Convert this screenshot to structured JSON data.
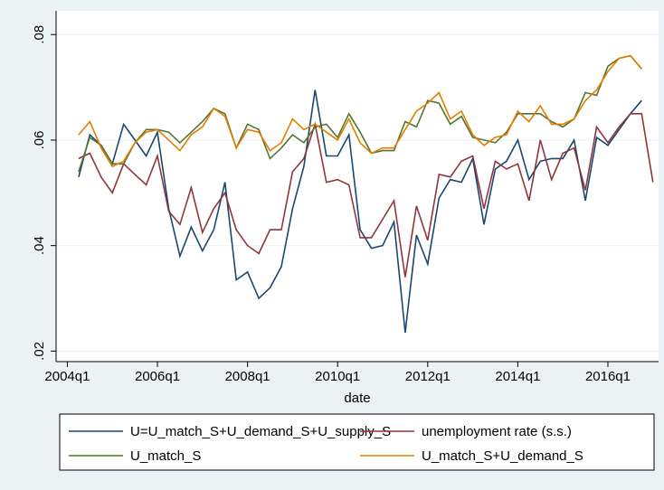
{
  "chart_data": {
    "type": "line",
    "x": [
      177,
      178,
      179,
      180,
      181,
      182,
      183,
      184,
      185,
      186,
      187,
      188,
      189,
      190,
      191,
      192,
      193,
      194,
      195,
      196,
      197,
      198,
      199,
      200,
      201,
      202,
      203,
      204,
      205,
      206,
      207,
      208,
      209,
      210,
      211,
      212,
      213,
      214,
      215,
      216,
      217,
      218,
      219,
      220,
      221,
      222,
      223,
      224,
      225,
      226,
      227,
      228
    ],
    "xlim": [
      175,
      228.5
    ],
    "xticks": [
      {
        "value": 176,
        "label": "2004q1"
      },
      {
        "value": 184,
        "label": "2006q1"
      },
      {
        "value": 192,
        "label": "2008q1"
      },
      {
        "value": 200,
        "label": "2010q1"
      },
      {
        "value": 208,
        "label": "2012q1"
      },
      {
        "value": 216,
        "label": "2014q1"
      },
      {
        "value": 224,
        "label": "2016q1"
      }
    ],
    "ylim": [
      0.018,
      0.0845
    ],
    "yticks": [
      {
        "value": 0.02,
        "label": ".02"
      },
      {
        "value": 0.04,
        "label": ".04"
      },
      {
        "value": 0.06,
        "label": ".06"
      },
      {
        "value": 0.08,
        "label": ".08"
      }
    ],
    "x_label": "date",
    "grid": true,
    "series": [
      {
        "name": "U=U_match_S+U_demand_S+U_supply_S",
        "color": "#1a476f",
        "values": [
          0.053,
          0.061,
          0.059,
          0.0555,
          0.063,
          0.06,
          0.057,
          0.0615,
          0.047,
          0.038,
          0.0435,
          0.039,
          0.043,
          0.052,
          0.0335,
          0.035,
          0.03,
          0.032,
          0.036,
          0.047,
          0.055,
          0.0695,
          0.057,
          0.057,
          0.061,
          0.043,
          0.0395,
          0.04,
          0.0445,
          0.0235,
          0.042,
          0.0365,
          0.049,
          0.0525,
          0.052,
          0.0565,
          0.044,
          0.0545,
          0.056,
          0.06,
          0.0525,
          0.056,
          0.0565,
          0.0565,
          0.06,
          0.0485,
          0.0605,
          0.059,
          0.062,
          0.065,
          0.0675,
          null
        ]
      },
      {
        "name": "unemployment rate (s.s.)",
        "color": "#90353b",
        "values": [
          0.0565,
          0.0575,
          0.053,
          0.05,
          0.0555,
          0.0535,
          0.0515,
          0.057,
          0.0465,
          0.044,
          0.051,
          0.0425,
          0.047,
          0.05,
          0.043,
          0.04,
          0.0385,
          0.043,
          0.043,
          0.054,
          0.0565,
          0.063,
          0.052,
          0.0525,
          0.0515,
          0.0415,
          0.0415,
          0.045,
          0.0485,
          0.034,
          0.0475,
          0.041,
          0.0535,
          0.053,
          0.056,
          0.057,
          0.047,
          0.056,
          0.0545,
          0.0555,
          0.0485,
          0.06,
          0.0525,
          0.0575,
          0.0585,
          0.0505,
          0.0625,
          0.0595,
          0.0625,
          0.065,
          0.065,
          0.052
        ]
      },
      {
        "name": "U_match_S",
        "color": "#55752f",
        "values": [
          0.054,
          0.0605,
          0.059,
          0.0555,
          0.0555,
          0.0595,
          0.062,
          0.062,
          0.0615,
          0.0595,
          0.0615,
          0.0635,
          0.066,
          0.065,
          0.0585,
          0.063,
          0.062,
          0.0565,
          0.0585,
          0.061,
          0.0595,
          0.0625,
          0.063,
          0.0605,
          0.065,
          0.0615,
          0.0575,
          0.058,
          0.058,
          0.0635,
          0.0625,
          0.0675,
          0.067,
          0.063,
          0.0645,
          0.0605,
          0.06,
          0.0595,
          0.0615,
          0.065,
          0.065,
          0.065,
          0.0635,
          0.0625,
          0.064,
          0.069,
          0.0685,
          0.074,
          0.0755,
          0.076,
          0.0735,
          null
        ]
      },
      {
        "name": "U_match_S+U_demand_S",
        "color": "#e37e00",
        "values": [
          0.061,
          0.0635,
          0.0585,
          0.055,
          0.056,
          0.0595,
          0.0615,
          0.062,
          0.06,
          0.058,
          0.061,
          0.0625,
          0.066,
          0.0645,
          0.0585,
          0.062,
          0.0615,
          0.058,
          0.0595,
          0.064,
          0.062,
          0.063,
          0.0615,
          0.06,
          0.064,
          0.0595,
          0.0575,
          0.0585,
          0.0585,
          0.062,
          0.0655,
          0.067,
          0.069,
          0.064,
          0.0655,
          0.061,
          0.059,
          0.0605,
          0.061,
          0.0655,
          0.0635,
          0.0665,
          0.063,
          0.063,
          0.064,
          0.0675,
          0.0695,
          0.073,
          0.0755,
          0.076,
          0.0735,
          null
        ]
      }
    ]
  }
}
